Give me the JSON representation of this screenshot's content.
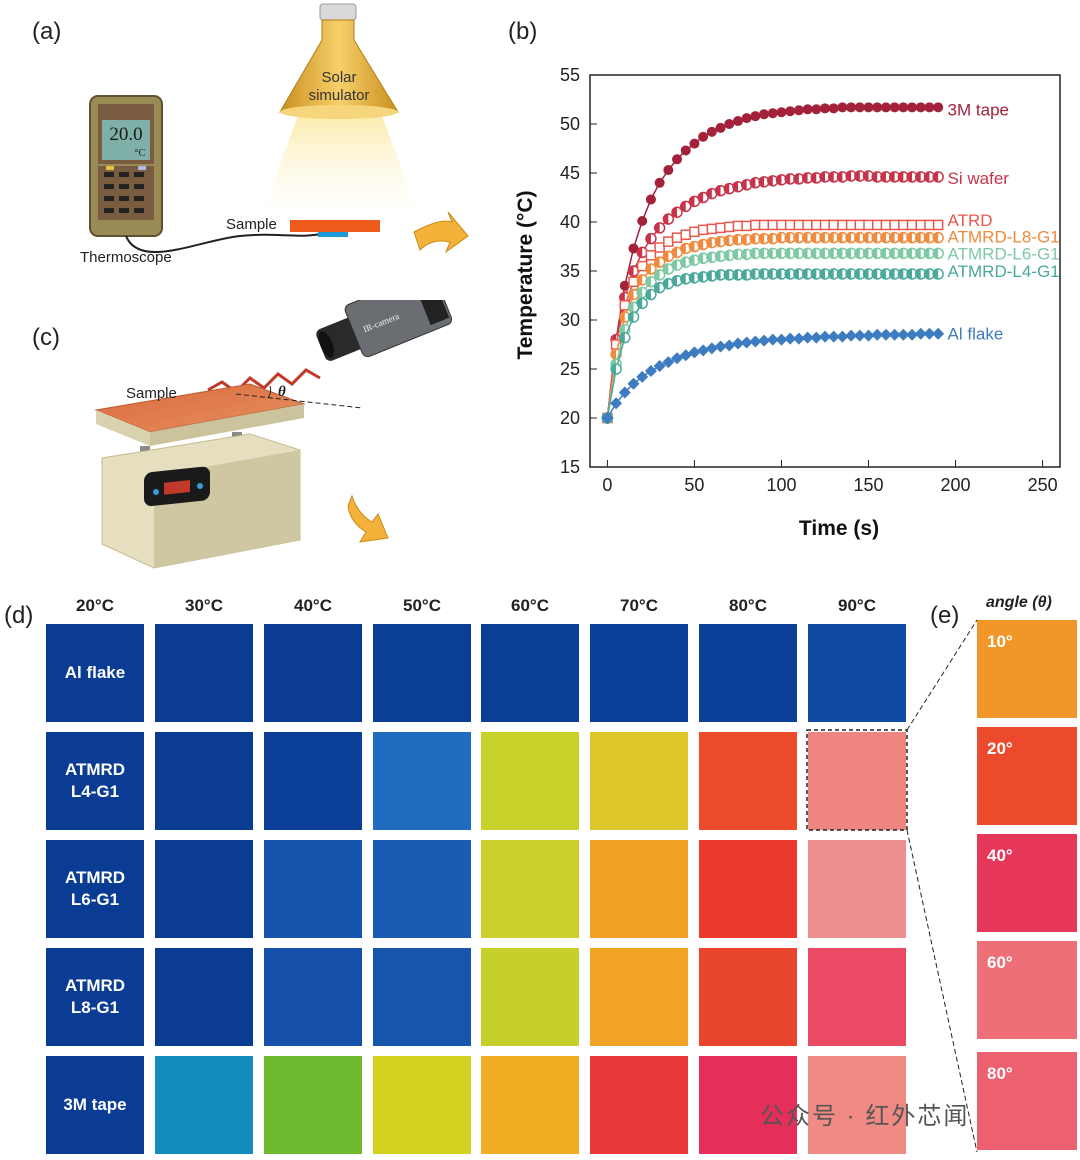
{
  "panels": {
    "a": "(a)",
    "b": "(b)",
    "c": "(c)",
    "d": "(d)",
    "e": "(e)"
  },
  "panel_a": {
    "meter_reading": "20.0",
    "meter_unit": "°C",
    "lamp_label_line1": "Solar",
    "lamp_label_line2": "simulator",
    "sample_label": "Sample",
    "thermoscope_label": "Thermoscope"
  },
  "panel_c": {
    "sample_label": "Sample",
    "angle_symbol": "θ",
    "camera_label": "IR-camera"
  },
  "chart_data": {
    "type": "line",
    "xlabel": "Time (s)",
    "ylabel": "Temperature (°C)",
    "xlim": [
      -10,
      260
    ],
    "ylim": [
      15,
      55
    ],
    "xticks": [
      0,
      50,
      100,
      150,
      200,
      250
    ],
    "yticks": [
      15,
      20,
      25,
      30,
      35,
      40,
      45,
      50,
      55
    ],
    "x": [
      0,
      5,
      10,
      15,
      20,
      25,
      30,
      35,
      40,
      45,
      50,
      55,
      60,
      65,
      70,
      75,
      80,
      85,
      90,
      95,
      100,
      105,
      110,
      115,
      120,
      125,
      130,
      135,
      140,
      145,
      150,
      155,
      160,
      165,
      170,
      175,
      180,
      185,
      190
    ],
    "series": [
      {
        "name": "3M tape",
        "color": "#a3213b",
        "label_y": 51.5,
        "marker": "filled-circle",
        "values": [
          20.0,
          28.0,
          33.5,
          37.3,
          40.1,
          42.3,
          44.0,
          45.3,
          46.4,
          47.3,
          48.0,
          48.7,
          49.2,
          49.6,
          50.0,
          50.3,
          50.6,
          50.8,
          51.0,
          51.1,
          51.2,
          51.3,
          51.4,
          51.5,
          51.5,
          51.6,
          51.6,
          51.7,
          51.7,
          51.7,
          51.7,
          51.7,
          51.7,
          51.7,
          51.7,
          51.7,
          51.7,
          51.7,
          51.7
        ]
      },
      {
        "name": "Si wafer",
        "color": "#c8334a",
        "label_y": 44.5,
        "marker": "half-circle",
        "values": [
          20.0,
          28.0,
          32.3,
          35.0,
          36.9,
          38.3,
          39.4,
          40.3,
          41.0,
          41.6,
          42.1,
          42.5,
          42.9,
          43.2,
          43.4,
          43.6,
          43.8,
          44.0,
          44.1,
          44.2,
          44.3,
          44.4,
          44.4,
          44.5,
          44.5,
          44.6,
          44.6,
          44.6,
          44.7,
          44.7,
          44.7,
          44.6,
          44.6,
          44.6,
          44.6,
          44.6,
          44.6,
          44.6,
          44.6
        ]
      },
      {
        "name": "ATRD",
        "color": "#e8574a",
        "label_y": 40.2,
        "marker": "open-square",
        "values": [
          20.0,
          27.5,
          31.5,
          33.9,
          35.5,
          36.6,
          37.4,
          38.0,
          38.4,
          38.7,
          39.0,
          39.2,
          39.3,
          39.4,
          39.5,
          39.6,
          39.6,
          39.7,
          39.7,
          39.7,
          39.7,
          39.7,
          39.7,
          39.7,
          39.7,
          39.7,
          39.7,
          39.7,
          39.7,
          39.7,
          39.7,
          39.7,
          39.7,
          39.7,
          39.7,
          39.7,
          39.7,
          39.7,
          39.7
        ]
      },
      {
        "name": "ATMRD-L8-G1",
        "color": "#f08a3c",
        "label_y": 38.5,
        "marker": "half-circle",
        "values": [
          20.0,
          26.5,
          30.3,
          32.6,
          34.1,
          35.2,
          35.9,
          36.5,
          36.9,
          37.3,
          37.5,
          37.7,
          37.9,
          38.0,
          38.1,
          38.2,
          38.2,
          38.3,
          38.3,
          38.3,
          38.4,
          38.4,
          38.4,
          38.4,
          38.4,
          38.4,
          38.4,
          38.4,
          38.4,
          38.4,
          38.4,
          38.4,
          38.4,
          38.4,
          38.4,
          38.4,
          38.4,
          38.4,
          38.4
        ]
      },
      {
        "name": "ATMRD-L6-G1",
        "color": "#7fc8a4",
        "label_y": 36.8,
        "marker": "half-circle",
        "values": [
          20.0,
          25.5,
          29.0,
          31.3,
          32.8,
          33.9,
          34.6,
          35.2,
          35.6,
          35.9,
          36.1,
          36.3,
          36.4,
          36.5,
          36.6,
          36.7,
          36.7,
          36.8,
          36.8,
          36.8,
          36.8,
          36.8,
          36.8,
          36.8,
          36.8,
          36.8,
          36.8,
          36.8,
          36.8,
          36.8,
          36.8,
          36.8,
          36.8,
          36.8,
          36.8,
          36.8,
          36.8,
          36.8,
          36.8
        ]
      },
      {
        "name": "ATMRD-L4-G1",
        "color": "#4aa99a",
        "label_y": 35.0,
        "marker": "half-circle",
        "values": [
          20.0,
          25.0,
          28.2,
          30.3,
          31.7,
          32.6,
          33.3,
          33.7,
          34.0,
          34.2,
          34.3,
          34.4,
          34.5,
          34.6,
          34.6,
          34.6,
          34.6,
          34.7,
          34.7,
          34.7,
          34.7,
          34.7,
          34.7,
          34.7,
          34.7,
          34.7,
          34.7,
          34.7,
          34.7,
          34.7,
          34.7,
          34.7,
          34.7,
          34.7,
          34.7,
          34.7,
          34.7,
          34.7,
          34.7
        ]
      },
      {
        "name": "Al flake",
        "color": "#3d7cc0",
        "label_y": 28.6,
        "marker": "filled-diamond",
        "values": [
          20.0,
          21.5,
          22.6,
          23.5,
          24.2,
          24.8,
          25.3,
          25.7,
          26.1,
          26.4,
          26.7,
          26.9,
          27.1,
          27.3,
          27.4,
          27.6,
          27.7,
          27.8,
          27.9,
          28.0,
          28.0,
          28.1,
          28.1,
          28.2,
          28.2,
          28.3,
          28.3,
          28.3,
          28.4,
          28.4,
          28.4,
          28.5,
          28.5,
          28.5,
          28.5,
          28.5,
          28.6,
          28.6,
          28.6
        ]
      }
    ]
  },
  "panel_d": {
    "columns": [
      "20°C",
      "30°C",
      "40°C",
      "50°C",
      "60°C",
      "70°C",
      "80°C",
      "90°C"
    ],
    "rows": [
      {
        "label": "Al flake",
        "colors": [
          "#0a3c93",
          "#0a3c93",
          "#0a3c93",
          "#0b3e95",
          "#0b3e95",
          "#0b3e96",
          "#0b3f98",
          "#0f4aa3"
        ]
      },
      {
        "label": "ATMRD\nL4-G1",
        "colors": [
          "#0a3c93",
          "#0a3c93",
          "#0c3f98",
          "#1f6cc0",
          "#c7d22a",
          "#dcc62a",
          "#ec4b2c",
          "#ef8580"
        ]
      },
      {
        "label": "ATMRD\nL6-G1",
        "colors": [
          "#0a3c93",
          "#0a3c93",
          "#1653ac",
          "#1a5cb4",
          "#cdd02c",
          "#f0a023",
          "#ea3a2c",
          "#ef8e8e"
        ]
      },
      {
        "label": "ATMRD\nL8-G1",
        "colors": [
          "#0a3c93",
          "#0a3c93",
          "#1550aa",
          "#1856ae",
          "#c6d02a",
          "#f0a324",
          "#e9452c",
          "#ea4a63"
        ]
      },
      {
        "label": "3M tape",
        "colors": [
          "#0a3c93",
          "#138bbd",
          "#6fb92f",
          "#d4d220",
          "#f0ac22",
          "#e8383a",
          "#e52e5a",
          "#f08a84"
        ]
      }
    ]
  },
  "panel_e": {
    "title": "angle (θ)",
    "tiles": [
      {
        "label": "10°",
        "color": "#f2962a"
      },
      {
        "label": "20°",
        "color": "#ec4a2c"
      },
      {
        "label": "40°",
        "color": "#e8385a"
      },
      {
        "label": "60°",
        "color": "#ef6f78"
      },
      {
        "label": "80°",
        "color": "#ec6070"
      }
    ]
  },
  "watermark": "公众号 · 红外芯闻"
}
